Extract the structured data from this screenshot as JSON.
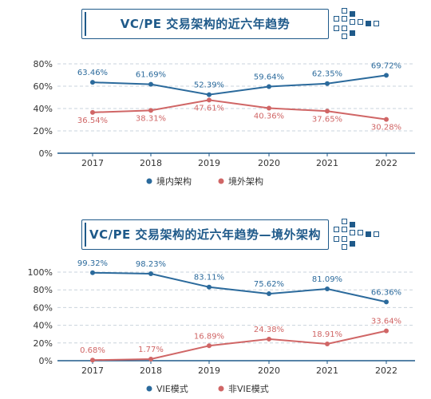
{
  "colors": {
    "blue": "#2b6a9c",
    "red": "#d06666",
    "axis": "#1f5a8a",
    "grid": "#c9d3dc",
    "tick": "#333333"
  },
  "chart_data": [
    {
      "type": "line",
      "title": "VC/PE 交易架构的近六年趋势",
      "categories": [
        "2017",
        "2018",
        "2019",
        "2020",
        "2021",
        "2022"
      ],
      "yticks": [
        "0%",
        "20%",
        "40%",
        "60%",
        "80%"
      ],
      "ylim": [
        0,
        80
      ],
      "grid": true,
      "legend_position": "bottom-center",
      "series": [
        {
          "name": "境内架构",
          "color": "#2b6a9c",
          "values": [
            63.46,
            61.69,
            52.39,
            59.64,
            62.35,
            69.72
          ],
          "labels": [
            "63.46%",
            "61.69%",
            "52.39%",
            "59.64%",
            "62.35%",
            "69.72%"
          ]
        },
        {
          "name": "境外架构",
          "color": "#d06666",
          "values": [
            36.54,
            38.31,
            47.61,
            40.36,
            37.65,
            30.28
          ],
          "labels": [
            "36.54%",
            "38.31%",
            "47.61%",
            "40.36%",
            "37.65%",
            "30.28%"
          ]
        }
      ]
    },
    {
      "type": "line",
      "title": "VC/PE 交易架构的近六年趋势—境外架构",
      "categories": [
        "2017",
        "2018",
        "2019",
        "2020",
        "2021",
        "2022"
      ],
      "yticks": [
        "0%",
        "20%",
        "40%",
        "60%",
        "80%",
        "100%"
      ],
      "ylim": [
        0,
        100
      ],
      "grid": true,
      "legend_position": "bottom-center",
      "series": [
        {
          "name": "VIE模式",
          "color": "#2b6a9c",
          "values": [
            99.32,
            98.23,
            83.11,
            75.62,
            81.09,
            66.36
          ],
          "labels": [
            "99.32%",
            "98.23%",
            "83.11%",
            "75.62%",
            "81.09%",
            "66.36%"
          ]
        },
        {
          "name": "非VIE模式",
          "color": "#d06666",
          "values": [
            0.68,
            1.77,
            16.89,
            24.38,
            18.91,
            33.64
          ],
          "labels": [
            "0.68%",
            "1.77%",
            "16.89%",
            "24.38%",
            "18.91%",
            "33.64%"
          ]
        }
      ]
    }
  ]
}
